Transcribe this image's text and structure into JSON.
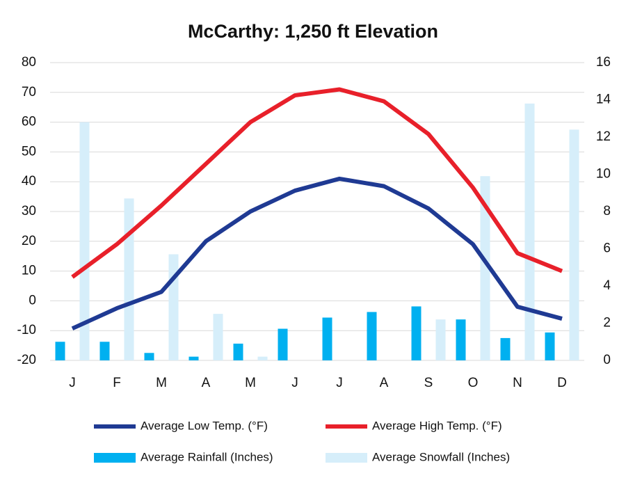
{
  "chart_data": {
    "type": "line",
    "title": "McCarthy: 1,250 ft Elevation",
    "categories": [
      "J",
      "F",
      "M",
      "A",
      "M",
      "J",
      "J",
      "A",
      "S",
      "O",
      "N",
      "D"
    ],
    "ylim": [
      -20,
      80
    ],
    "yticks": [
      -20,
      -10,
      0,
      10,
      20,
      30,
      40,
      50,
      60,
      70,
      80
    ],
    "y2lim": [
      0,
      16
    ],
    "y2ticks": [
      0,
      2,
      4,
      6,
      8,
      10,
      12,
      14,
      16
    ],
    "grid": true,
    "series": [
      {
        "name": "Average Low Temp. (°F)",
        "type": "line",
        "color": "#1f3a93",
        "values": [
          -9.3,
          -2.5,
          3,
          20,
          30,
          37,
          41,
          38.5,
          31,
          19,
          -2,
          -6
        ]
      },
      {
        "name": "Average High Temp. (°F)",
        "type": "line",
        "color": "#e8202a",
        "values": [
          8,
          19,
          32,
          46,
          60,
          69,
          71,
          67,
          56,
          38,
          16,
          10
        ]
      },
      {
        "name": "Average Rainfall (Inches)",
        "type": "bar",
        "axis": "y2",
        "color": "#00b0f0",
        "values": [
          1.0,
          1.0,
          0.4,
          0.2,
          0.9,
          1.7,
          2.3,
          2.6,
          2.9,
          2.2,
          1.2,
          1.5
        ]
      },
      {
        "name": "Average Snowfall (Inches)",
        "type": "bar",
        "axis": "y2",
        "color": "#d6eefa",
        "values": [
          12.8,
          8.7,
          5.7,
          2.5,
          0.2,
          0,
          0,
          0,
          2.2,
          9.9,
          13.8,
          12.4
        ]
      }
    ]
  }
}
